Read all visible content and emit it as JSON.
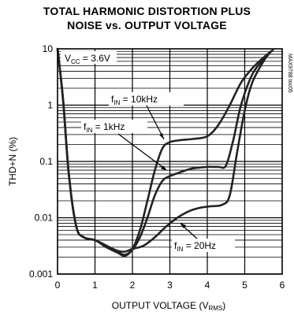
{
  "chart_data": {
    "type": "line",
    "title_line1": "TOTAL HARMONIC DISTORTION PLUS",
    "title_line2": "NOISE vs. OUTPUT VOLTAGE",
    "xlabel": "OUTPUT VOLTAGE (V",
    "xlabel_sub": "RMS",
    "xlabel_end": ")",
    "ylabel": "THD+N (%)",
    "xlim": [
      0,
      6
    ],
    "ylim": [
      0.001,
      10
    ],
    "yscale": "log",
    "grid": true,
    "x_ticks": [
      "0",
      "1",
      "2",
      "3",
      "4",
      "5",
      "6"
    ],
    "y_ticks": [
      "0.001",
      "0.01",
      "0.1",
      "1",
      "10"
    ],
    "condition_label": "V",
    "condition_sub": "CC",
    "condition_value": " = 3.6V",
    "part_code": "MAX9788 toc05",
    "series": [
      {
        "name": "fIN = 10kHz",
        "label_main": "f",
        "label_sub": "IN",
        "label_value": " = 10kHz",
        "points": [
          [
            0.0,
            10
          ],
          [
            0.15,
            1.2
          ],
          [
            0.3,
            0.06
          ],
          [
            0.5,
            0.007
          ],
          [
            0.7,
            0.0045
          ],
          [
            1.0,
            0.004
          ],
          [
            1.3,
            0.0032
          ],
          [
            1.6,
            0.0025
          ],
          [
            1.8,
            0.0022
          ],
          [
            2.0,
            0.0028
          ],
          [
            2.2,
            0.006
          ],
          [
            2.4,
            0.02
          ],
          [
            2.6,
            0.07
          ],
          [
            2.8,
            0.17
          ],
          [
            3.0,
            0.22
          ],
          [
            3.3,
            0.24
          ],
          [
            3.6,
            0.25
          ],
          [
            4.0,
            0.28
          ],
          [
            4.3,
            0.45
          ],
          [
            4.6,
            1.0
          ],
          [
            4.9,
            2.5
          ],
          [
            5.2,
            4.5
          ],
          [
            5.5,
            7.0
          ],
          [
            5.75,
            9.5
          ]
        ]
      },
      {
        "name": "fIN = 1kHz",
        "label_main": "f",
        "label_sub": "IN",
        "label_value": " = 1kHz",
        "points": [
          [
            0.0,
            10
          ],
          [
            0.15,
            1.2
          ],
          [
            0.3,
            0.06
          ],
          [
            0.5,
            0.007
          ],
          [
            0.7,
            0.0045
          ],
          [
            1.0,
            0.004
          ],
          [
            1.3,
            0.003
          ],
          [
            1.6,
            0.0024
          ],
          [
            1.8,
            0.0021
          ],
          [
            2.0,
            0.0027
          ],
          [
            2.2,
            0.0045
          ],
          [
            2.4,
            0.01
          ],
          [
            2.6,
            0.025
          ],
          [
            2.8,
            0.045
          ],
          [
            3.0,
            0.055
          ],
          [
            3.3,
            0.065
          ],
          [
            3.6,
            0.075
          ],
          [
            4.0,
            0.08
          ],
          [
            4.3,
            0.08
          ],
          [
            4.5,
            0.085
          ],
          [
            4.7,
            0.25
          ],
          [
            4.9,
            1.0
          ],
          [
            5.2,
            3.5
          ],
          [
            5.5,
            6.5
          ],
          [
            5.7,
            9.0
          ]
        ]
      },
      {
        "name": "fIN = 20Hz",
        "label_main": "f",
        "label_sub": "IN",
        "label_value": " = 20Hz",
        "points": [
          [
            0.0,
            10
          ],
          [
            0.15,
            1.2
          ],
          [
            0.3,
            0.06
          ],
          [
            0.5,
            0.007
          ],
          [
            0.7,
            0.0045
          ],
          [
            1.0,
            0.004
          ],
          [
            1.3,
            0.0032
          ],
          [
            1.6,
            0.0026
          ],
          [
            1.8,
            0.0025
          ],
          [
            2.0,
            0.0028
          ],
          [
            2.3,
            0.0032
          ],
          [
            2.6,
            0.0045
          ],
          [
            2.9,
            0.007
          ],
          [
            3.2,
            0.01
          ],
          [
            3.5,
            0.013
          ],
          [
            3.8,
            0.015
          ],
          [
            4.1,
            0.016
          ],
          [
            4.4,
            0.017
          ],
          [
            4.6,
            0.025
          ],
          [
            4.8,
            0.15
          ],
          [
            5.0,
            0.8
          ],
          [
            5.2,
            2.5
          ],
          [
            5.5,
            6.0
          ],
          [
            5.7,
            9.0
          ]
        ]
      }
    ]
  }
}
